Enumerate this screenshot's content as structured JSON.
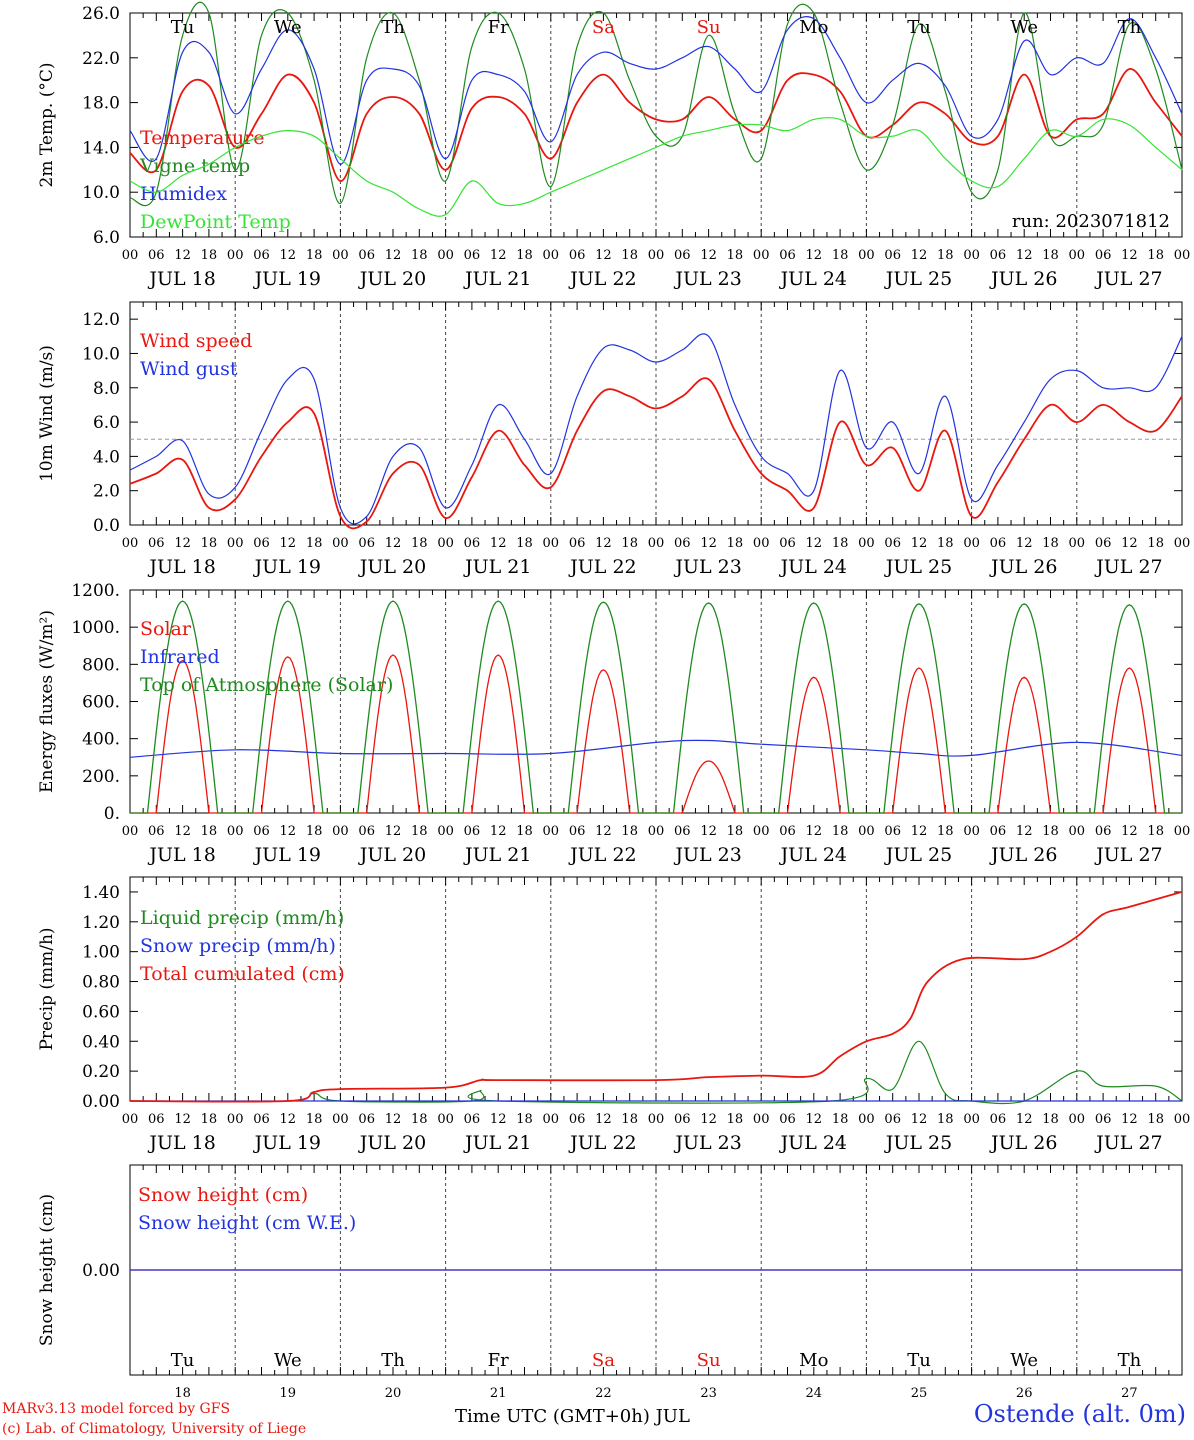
{
  "days": [
    "JUL 18",
    "JUL 19",
    "JUL 20",
    "JUL 21",
    "JUL 22",
    "JUL 23",
    "JUL 24",
    "JUL 25",
    "JUL 26",
    "JUL 27"
  ],
  "weekdays": [
    "Tu",
    "We",
    "Th",
    "Fr",
    "Sa",
    "Su",
    "Mo",
    "Tu",
    "We",
    "Th"
  ],
  "weekend_flags": [
    false,
    false,
    false,
    false,
    true,
    true,
    false,
    false,
    false,
    false
  ],
  "day_numbers": [
    "18",
    "19",
    "20",
    "21",
    "22",
    "23",
    "24",
    "25",
    "26",
    "27"
  ],
  "hour_ticks": [
    "00",
    "06",
    "12",
    "18"
  ],
  "footer": {
    "credit1": "MARv3.13 model forced by GFS",
    "credit2": "(c) Lab. of Climatology, University of Liege",
    "station": "Ostende (alt. 0m)",
    "xtitle": "Time UTC (GMT+0h) JUL"
  },
  "chart_data": [
    {
      "type": "line",
      "ylabel": "2m Temp. (°C)",
      "ylim": [
        6.0,
        26.0
      ],
      "yticks": [
        "6.0",
        "10.0",
        "14.0",
        "18.0",
        "22.0",
        "26.0"
      ],
      "annotation": "run: 2023071812",
      "x_unit": "hours since JUL 18 00 UTC",
      "series": [
        {
          "name": "Temperature",
          "color": "#e8170f",
          "x": [
            0,
            6,
            12,
            18,
            24,
            30,
            36,
            42,
            48,
            54,
            60,
            66,
            72,
            78,
            84,
            90,
            96,
            102,
            108,
            114,
            120,
            126,
            132,
            138,
            144,
            150,
            156,
            162,
            168,
            174,
            180,
            186,
            192,
            198,
            204,
            210,
            216,
            222,
            228,
            234,
            240
          ],
          "y": [
            13.5,
            12,
            19,
            19.5,
            14,
            17,
            20.5,
            18,
            11,
            17,
            18.5,
            17,
            12,
            17.5,
            18.5,
            17,
            13,
            18,
            20.5,
            18,
            16.5,
            16.5,
            18.5,
            16.5,
            15.5,
            20,
            20.5,
            19,
            15,
            16,
            18,
            17,
            14.5,
            15,
            20.5,
            15,
            16.5,
            17,
            21,
            18,
            15
          ]
        },
        {
          "name": "Vigne temp",
          "color": "#1f8a1f",
          "x": [
            0,
            6,
            12,
            18,
            24,
            30,
            36,
            42,
            48,
            54,
            60,
            66,
            72,
            78,
            84,
            90,
            96,
            102,
            108,
            114,
            120,
            126,
            132,
            138,
            144,
            150,
            156,
            162,
            168,
            174,
            180,
            186,
            192,
            198,
            204,
            210,
            216,
            222,
            228,
            234,
            240
          ],
          "y": [
            9.5,
            10,
            24,
            26,
            12,
            24,
            26,
            20,
            9,
            22,
            26,
            20,
            11,
            23,
            26,
            21,
            10.5,
            23,
            26,
            20,
            15,
            15,
            24,
            17,
            13,
            25,
            26,
            18,
            12,
            16,
            25,
            19,
            10,
            12,
            26,
            15,
            15,
            16,
            25,
            21,
            12
          ]
        },
        {
          "name": "Humidex",
          "color": "#2233e0",
          "x": [
            0,
            6,
            12,
            18,
            24,
            30,
            36,
            42,
            48,
            54,
            60,
            66,
            72,
            78,
            84,
            90,
            96,
            102,
            108,
            114,
            120,
            126,
            132,
            138,
            144,
            150,
            156,
            162,
            168,
            174,
            180,
            186,
            192,
            198,
            204,
            210,
            216,
            222,
            228,
            234,
            240
          ],
          "y": [
            15.5,
            13,
            22.5,
            22.5,
            17,
            21,
            24.5,
            21,
            12.5,
            20,
            21,
            19.5,
            13,
            20,
            20.5,
            19,
            14.5,
            20.5,
            22.5,
            21.5,
            21,
            22,
            23,
            21,
            19,
            24.5,
            25.5,
            22,
            18,
            20,
            21.5,
            19.5,
            15,
            16.5,
            23.5,
            20.5,
            22,
            21.5,
            25.5,
            22,
            17
          ]
        },
        {
          "name": "DewPoint Temp",
          "color": "#33e433",
          "x": [
            0,
            6,
            12,
            18,
            24,
            30,
            36,
            42,
            48,
            54,
            60,
            66,
            72,
            78,
            84,
            90,
            96,
            102,
            108,
            114,
            120,
            126,
            132,
            138,
            144,
            150,
            156,
            162,
            168,
            174,
            180,
            186,
            192,
            198,
            204,
            210,
            216,
            222,
            228,
            234,
            240
          ],
          "y": [
            11,
            10,
            11.5,
            12.5,
            14,
            15,
            15.5,
            15,
            13,
            11,
            10,
            8.5,
            8,
            11,
            9,
            9,
            10,
            11,
            12,
            13,
            14,
            15,
            15.5,
            16,
            16,
            15.5,
            16.5,
            16.5,
            15,
            15,
            15.5,
            13,
            11,
            10.5,
            13,
            15.5,
            15,
            16.5,
            16,
            14,
            12
          ]
        }
      ]
    },
    {
      "type": "line",
      "ylabel": "10m Wind (m/s)",
      "ylim": [
        0.0,
        13.0
      ],
      "yticks": [
        "0.0",
        "2.0",
        "4.0",
        "6.0",
        "8.0",
        "10.0",
        "12.0"
      ],
      "threshold": 5.0,
      "x_unit": "hours since JUL 18 00 UTC",
      "series": [
        {
          "name": "Wind speed",
          "color": "#e8170f",
          "x": [
            0,
            6,
            12,
            18,
            24,
            30,
            36,
            42,
            48,
            54,
            60,
            66,
            72,
            78,
            84,
            90,
            96,
            102,
            108,
            114,
            120,
            126,
            132,
            138,
            144,
            150,
            156,
            162,
            168,
            174,
            180,
            186,
            192,
            198,
            204,
            210,
            216,
            222,
            228,
            234,
            240
          ],
          "y": [
            2.4,
            3,
            3.8,
            1,
            1.5,
            4,
            6,
            6.5,
            0.5,
            0.2,
            3,
            3.5,
            0.4,
            2.8,
            5.5,
            3.5,
            2.2,
            5.5,
            7.8,
            7.5,
            6.8,
            7.5,
            8.5,
            5.5,
            3,
            2,
            1,
            6,
            3.5,
            4.5,
            2,
            5.5,
            0.5,
            2.5,
            5,
            7,
            6,
            7,
            6,
            5.5,
            7.5
          ]
        },
        {
          "name": "Wind gust",
          "color": "#2233e0",
          "x": [
            0,
            6,
            12,
            18,
            24,
            30,
            36,
            42,
            48,
            54,
            60,
            66,
            72,
            78,
            84,
            90,
            96,
            102,
            108,
            114,
            120,
            126,
            132,
            138,
            144,
            150,
            156,
            162,
            168,
            174,
            180,
            186,
            192,
            198,
            204,
            210,
            216,
            222,
            228,
            234,
            240
          ],
          "y": [
            3.2,
            4,
            4.9,
            1.8,
            2.2,
            5.5,
            8.5,
            8.5,
            1,
            0.5,
            4,
            4.5,
            1,
            3.5,
            7,
            5,
            3,
            7.5,
            10.3,
            10.2,
            9.5,
            10.2,
            11,
            7,
            4,
            3,
            2,
            9,
            4.5,
            6,
            3,
            7.5,
            1.5,
            3.5,
            6,
            8.5,
            9,
            8,
            8,
            8,
            11
          ]
        }
      ]
    },
    {
      "type": "line",
      "ylabel": "Energy fluxes (W/m²)",
      "ylim": [
        0,
        1200
      ],
      "yticks": [
        "0.",
        "200.",
        "400.",
        "600.",
        "800.",
        "1000.",
        "1200."
      ],
      "x_unit": "hours since JUL 18 00 UTC",
      "series": [
        {
          "name": "Solar",
          "color": "#e8170f",
          "day_peaks": [
            820,
            840,
            850,
            850,
            770,
            280,
            730,
            780,
            730,
            780
          ]
        },
        {
          "name": "Infrared",
          "color": "#2233e0",
          "x": [
            0,
            24,
            48,
            72,
            96,
            120,
            132,
            144,
            168,
            180,
            192,
            216,
            240
          ],
          "y": [
            300,
            340,
            320,
            320,
            320,
            380,
            390,
            370,
            340,
            320,
            310,
            380,
            310
          ]
        },
        {
          "name": "Top of Atmosphere (Solar)",
          "color": "#1f8a1f",
          "day_peaks": [
            1140,
            1140,
            1140,
            1140,
            1135,
            1130,
            1130,
            1125,
            1125,
            1120
          ]
        }
      ]
    },
    {
      "type": "line",
      "ylabel": "Precip (mm/h)",
      "ylim": [
        0.0,
        1.5
      ],
      "yticks": [
        "0.00",
        "0.20",
        "0.40",
        "0.60",
        "0.80",
        "1.00",
        "1.20",
        "1.40"
      ],
      "x_unit": "hours since JUL 18 00 UTC",
      "series": [
        {
          "name": "Liquid precip (mm/h)",
          "color": "#1f8a1f",
          "x": [
            0,
            36,
            42,
            48,
            78,
            80,
            84,
            160,
            168,
            174,
            180,
            186,
            192,
            204,
            216,
            222,
            234,
            240
          ],
          "y": [
            0,
            0,
            0.05,
            0,
            0,
            0.07,
            0,
            0,
            0.15,
            0.08,
            0.4,
            0.05,
            0,
            0,
            0.2,
            0.1,
            0.1,
            0
          ]
        },
        {
          "name": "Snow precip (mm/h)",
          "color": "#2233e0",
          "x": [
            0,
            240
          ],
          "y": [
            0,
            0
          ]
        },
        {
          "name": "Total cumulated (cm)",
          "color": "#e8170f",
          "x": [
            0,
            36,
            42,
            48,
            72,
            80,
            84,
            120,
            132,
            144,
            156,
            162,
            168,
            174,
            178,
            182,
            190,
            204,
            210,
            216,
            222,
            228,
            240
          ],
          "y": [
            0,
            0,
            0.06,
            0.08,
            0.09,
            0.14,
            0.14,
            0.14,
            0.16,
            0.17,
            0.17,
            0.3,
            0.4,
            0.45,
            0.55,
            0.8,
            0.95,
            0.95,
            1.0,
            1.1,
            1.25,
            1.3,
            1.4
          ]
        }
      ]
    },
    {
      "type": "line",
      "ylabel": "Snow height (cm)",
      "ylim": [
        -1,
        1
      ],
      "yticks": [
        "0.00"
      ],
      "x_unit": "hours since JUL 18 00 UTC",
      "series": [
        {
          "name": "Snow height (cm)",
          "color": "#e8170f",
          "x": [
            0,
            240
          ],
          "y": [
            0,
            0
          ]
        },
        {
          "name": "Snow height (cm W.E.)",
          "color": "#2233e0",
          "x": [
            0,
            240
          ],
          "y": [
            0,
            0
          ]
        }
      ]
    }
  ]
}
